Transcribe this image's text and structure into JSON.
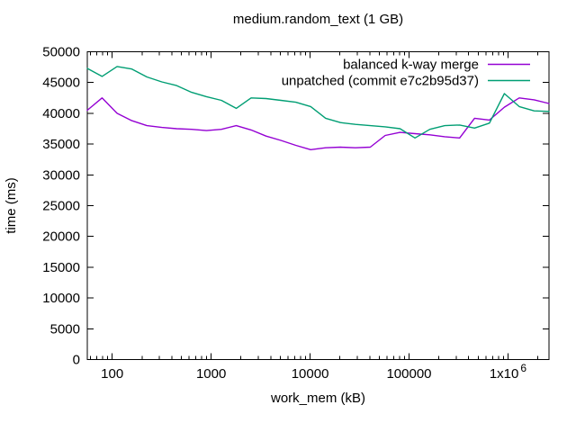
{
  "window": {
    "background": "#ffffff"
  },
  "chart_data": {
    "type": "line",
    "title": "medium.random_text (1 GB)",
    "xlabel": "work_mem (kB)",
    "ylabel": "time (ms)",
    "x_scale": "log10",
    "xlim": [
      56,
      2595908
    ],
    "ylim": [
      0,
      50000
    ],
    "grid": false,
    "legend_position": "top-right",
    "y_ticks": [
      0,
      5000,
      10000,
      15000,
      20000,
      25000,
      30000,
      35000,
      40000,
      45000,
      50000
    ],
    "y_tick_labels": [
      "0",
      "5000",
      "10000",
      "15000",
      "20000",
      "25000",
      "30000",
      "35000",
      "40000",
      "45000",
      "50000"
    ],
    "x_major_ticks": [
      {
        "value": 100,
        "label": "100"
      },
      {
        "value": 1000,
        "label": "1000"
      },
      {
        "value": 10000,
        "label": "10000"
      },
      {
        "value": 100000,
        "label": "100000"
      },
      {
        "value": 1000000,
        "label": "1x10",
        "exponent": "6"
      }
    ],
    "x": [
      56,
      79,
      112,
      158,
      224,
      317,
      448,
      634,
      896,
      1268,
      1793,
      2535,
      3585,
      5070,
      7170,
      10140,
      14340,
      20281,
      28680,
      40561,
      57360,
      81122,
      114719,
      162244,
      229439,
      324489,
      458878,
      648977,
      917756,
      1297954,
      1835512,
      2595908
    ],
    "series": [
      {
        "name": "balanced k-way merge",
        "color": "#9400d3",
        "values": [
          40500,
          42500,
          40000,
          38800,
          38000,
          37700,
          37500,
          37400,
          37200,
          37400,
          38000,
          37300,
          36300,
          35600,
          34800,
          34100,
          34400,
          34500,
          34400,
          34500,
          36400,
          36900,
          36700,
          36500,
          36200,
          36000,
          39200,
          38900,
          41000,
          42500,
          42200,
          41600
        ]
      },
      {
        "name": "unpatched (commit e7c2b95d37)",
        "color": "#009e73",
        "values": [
          47300,
          46000,
          47600,
          47200,
          45900,
          45100,
          44500,
          43400,
          42700,
          42100,
          40800,
          42500,
          42400,
          42100,
          41800,
          41100,
          39200,
          38500,
          38200,
          38000,
          37800,
          37500,
          36000,
          37400,
          38000,
          38100,
          37600,
          38400,
          43200,
          41100,
          40400,
          40300
        ]
      }
    ],
    "axis_color": "#000000"
  }
}
